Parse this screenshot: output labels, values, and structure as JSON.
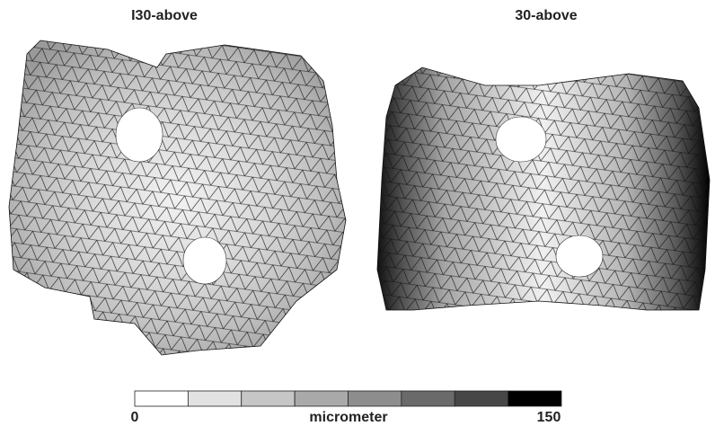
{
  "panels": [
    {
      "title": "I30-above"
    },
    {
      "title": "30-above"
    }
  ],
  "colorbar": {
    "min": 0,
    "max": 150,
    "label": "micrometer",
    "colors": [
      "#ffffff",
      "#e2e2e2",
      "#c6c6c6",
      "#a9a9a9",
      "#8d8d8d",
      "#6a6a6a",
      "#474747",
      "#000000"
    ]
  }
}
